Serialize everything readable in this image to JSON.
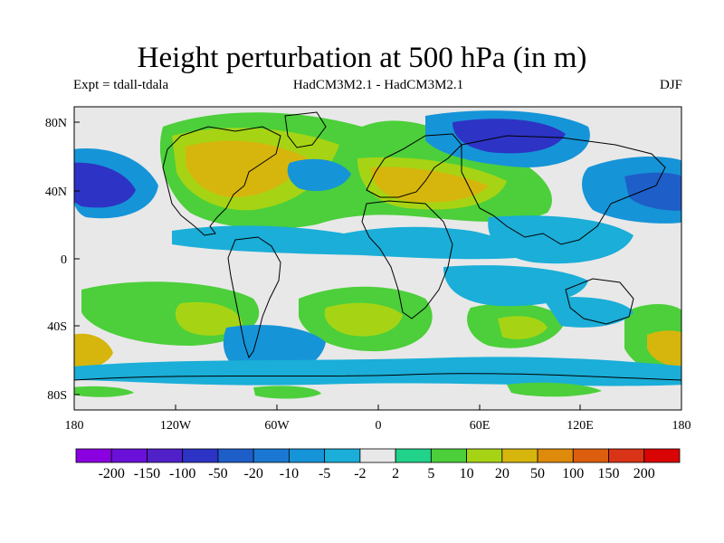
{
  "title": "Height perturbation at 500 hPa (in m)",
  "subtitle_left": "Expt = tdall-tdala",
  "subtitle_center": "HadCM3M2.1 - HadCM3M2.1",
  "subtitle_right": "DJF",
  "lat_ticks": [
    "80N",
    "40N",
    "0",
    "40S",
    "80S"
  ],
  "lon_ticks": [
    "180",
    "120W",
    "60W",
    "0",
    "60E",
    "120E",
    "180"
  ],
  "colorbar": {
    "colors": [
      "#8a00e0",
      "#6a10d8",
      "#5020c8",
      "#2d33c4",
      "#1e5ec8",
      "#1a78d2",
      "#1694d8",
      "#1aaed8",
      "#e8e8e8",
      "#20d28a",
      "#4ccf3a",
      "#a6d414",
      "#d6b60c",
      "#de8a0a",
      "#dc5e0e",
      "#d93318",
      "#d90404"
    ],
    "labels": [
      "-200",
      "-150",
      "-100",
      "-50",
      "-20",
      "-10",
      "-5",
      "-2",
      "2",
      "5",
      "10",
      "20",
      "50",
      "100",
      "150",
      "200"
    ]
  },
  "colors": {
    "background_field": "#e8e8e8",
    "coast": "#000000"
  }
}
